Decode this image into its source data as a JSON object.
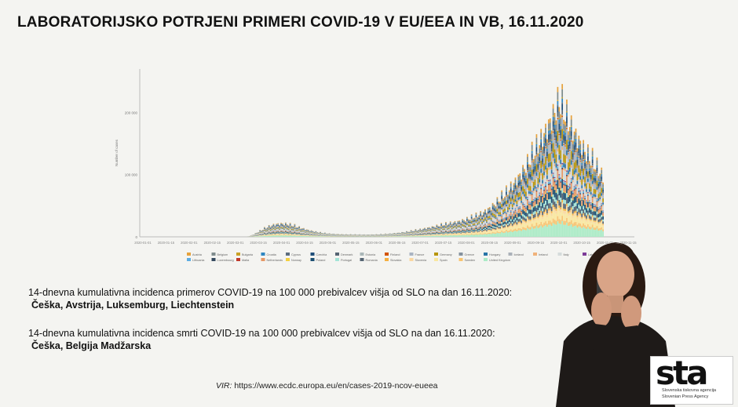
{
  "title": "LABORATORIJSKO POTRJENI PRIMERI COVID-19 V EU/EEA IN VB, 16.11.2020",
  "block1": {
    "heading": "14-dnevna kumulativna incidenca primerov COVID-19 na 100 000 prebivalcev višja od SLO na dan 16.11.2020:",
    "countries": "Češka, Avstrija, Luksemburg, Liechtenstein"
  },
  "block2": {
    "heading": "14-dnevna kumulativna incidenca smrti COVID-19 na 100 000 prebivalcev višja od SLO na dan 16.11.2020:",
    "countries": "Češka, Belgija Madžarska"
  },
  "source": {
    "label": "VIR:",
    "url": "https://www.ecdc.europa.eu/en/cases-2019-ncov-eueea"
  },
  "logo": {
    "mark": "sta",
    "line1": "Slovenska tiskovna agencija",
    "line2": "Slovenian Press Agency"
  },
  "colors": {
    "background": "#f4f4f1",
    "signer_top": "#1e1a18"
  },
  "chart_data": {
    "type": "bar",
    "stacked": true,
    "ylabel": "Number of cases",
    "ylim": [
      0,
      270000
    ],
    "yticks": [
      0,
      100000,
      200000
    ],
    "ytick_labels": [
      "0",
      "100 000",
      "200 000"
    ],
    "x_tick_labels": [
      "2020-01-01",
      "2020-01-15",
      "2020-02-01",
      "2020-02-15",
      "2020-03-01",
      "2020-03-15",
      "2020-04-01",
      "2020-04-15",
      "2020-05-01",
      "2020-05-15",
      "2020-06-01",
      "2020-06-15",
      "2020-07-01",
      "2020-07-15",
      "2020-08-01",
      "2020-08-15",
      "2020-09-01",
      "2020-09-15",
      "2020-10-01",
      "2020-10-15",
      "2020-11-01",
      "2020-11-15"
    ],
    "grid": false,
    "legend_position": "bottom",
    "days": 321,
    "total_daily_cases": [
      0,
      0,
      0,
      0,
      0,
      0,
      0,
      0,
      0,
      0,
      0,
      0,
      0,
      0,
      0,
      0,
      0,
      0,
      0,
      0,
      0,
      0,
      0,
      0,
      0,
      0,
      0,
      0,
      0,
      0,
      0,
      0,
      0,
      0,
      0,
      0,
      0,
      0,
      0,
      0,
      0,
      0,
      0,
      0,
      0,
      0,
      0,
      0,
      0,
      0,
      0,
      0,
      0,
      0,
      0,
      0,
      0,
      0,
      0,
      0,
      0,
      0,
      0,
      0,
      0,
      100,
      200,
      400,
      700,
      1100,
      1700,
      2600,
      3700,
      5000,
      6500,
      8100,
      9700,
      11300,
      12900,
      14500,
      16000,
      17400,
      18700,
      19900,
      21000,
      22000,
      22900,
      23700,
      24300,
      24800,
      25100,
      25200,
      25200,
      25000,
      24700,
      24300,
      23800,
      23200,
      22500,
      21700,
      20900,
      20000,
      19100,
      18200,
      17300,
      16400,
      15500,
      14700,
      13900,
      13100,
      12400,
      11700,
      11000,
      10400,
      9800,
      9200,
      8700,
      8200,
      7800,
      7400,
      7000,
      6700,
      6400,
      6100,
      5900,
      5700,
      5500,
      5300,
      5200,
      5100,
      5000,
      4900,
      4800,
      4700,
      4600,
      4600,
      4500,
      4500,
      4400,
      4400,
      4400,
      4300,
      4300,
      4300,
      4300,
      4300,
      4300,
      4300,
      4300,
      4300,
      4400,
      4400,
      4500,
      4500,
      4600,
      4700,
      4800,
      4900,
      5000,
      5200,
      5400,
      5600,
      5800,
      6000,
      6300,
      6600,
      6900,
      7200,
      7500,
      7800,
      8100,
      8500,
      8900,
      9300,
      9700,
      10100,
      10600,
      11100,
      11600,
      12100,
      12600,
      13100,
      13700,
      14300,
      14900,
      15500,
      16100,
      16700,
      17300,
      17900,
      18500,
      19100,
      19700,
      20300,
      20900,
      21500,
      22100,
      22700,
      23300,
      23900,
      24500,
      25100,
      25700,
      26300,
      26900,
      27500,
      28100,
      28700,
      29400,
      30100,
      30800,
      31500,
      32300,
      33100,
      33900,
      34800,
      35700,
      36700,
      37700,
      38800,
      40000,
      41300,
      42700,
      44200,
      45800,
      47500,
      49300,
      51200,
      53200,
      55300,
      57500,
      59800,
      62200,
      64700,
      67300,
      70000,
      72800,
      75700,
      78700,
      81800,
      85000,
      88300,
      91700,
      95200,
      98800,
      102500,
      106300,
      110200,
      114200,
      118300,
      122500,
      126800,
      131200,
      135700,
      140300,
      145000,
      149800,
      154700,
      159700,
      164800,
      170000,
      175300,
      180700,
      186200,
      191800,
      197500,
      203300,
      209200,
      215200,
      221300,
      227500,
      233800,
      240200,
      246700,
      253300,
      260000,
      255000,
      248000,
      241000,
      234000,
      228000,
      222000,
      216000,
      210000,
      205000,
      200000,
      195000,
      190000,
      185000,
      180000,
      175000,
      170000,
      165000,
      160000,
      156000,
      152000,
      148000,
      144000,
      140000,
      136000,
      132000,
      128000,
      124000,
      120000,
      116000
    ],
    "series": [
      {
        "name": "Austria",
        "color": "#e6a23c"
      },
      {
        "name": "Belgium",
        "color": "#7f8c8d"
      },
      {
        "name": "Bulgaria",
        "color": "#c9a227"
      },
      {
        "name": "Croatia",
        "color": "#2e86c1"
      },
      {
        "name": "Cyprus",
        "color": "#5d6d7e"
      },
      {
        "name": "Czechia",
        "color": "#1f4e79"
      },
      {
        "name": "Denmark",
        "color": "#566573"
      },
      {
        "name": "Estonia",
        "color": "#aab7b8"
      },
      {
        "name": "Finland",
        "color": "#d35400"
      },
      {
        "name": "France",
        "color": "#a9b4c2"
      },
      {
        "name": "Germany",
        "color": "#b7950b"
      },
      {
        "name": "Greece",
        "color": "#85929e"
      },
      {
        "name": "Hungary",
        "color": "#2874a6"
      },
      {
        "name": "Iceland",
        "color": "#abb2b9"
      },
      {
        "name": "Ireland",
        "color": "#f0b27a"
      },
      {
        "name": "Italy",
        "color": "#d5dbdb"
      },
      {
        "name": "Latvia",
        "color": "#7d3c98"
      },
      {
        "name": "Liechtenstein",
        "color": "#f7dc6f"
      },
      {
        "name": "Lithuania",
        "color": "#5dade2"
      },
      {
        "name": "Luxembourg",
        "color": "#34495e"
      },
      {
        "name": "Malta",
        "color": "#c0392b"
      },
      {
        "name": "Netherlands",
        "color": "#e59866"
      },
      {
        "name": "Norway",
        "color": "#f4d03f"
      },
      {
        "name": "Poland",
        "color": "#1b4f72"
      },
      {
        "name": "Portugal",
        "color": "#a3e4d7"
      },
      {
        "name": "Romania",
        "color": "#566573"
      },
      {
        "name": "Slovakia",
        "color": "#f5b041"
      },
      {
        "name": "Slovenia",
        "color": "#fad7a0"
      },
      {
        "name": "Spain",
        "color": "#f9e79f"
      },
      {
        "name": "Sweden",
        "color": "#f8c471"
      },
      {
        "name": "United Kingdom",
        "color": "#abebc6"
      }
    ]
  }
}
